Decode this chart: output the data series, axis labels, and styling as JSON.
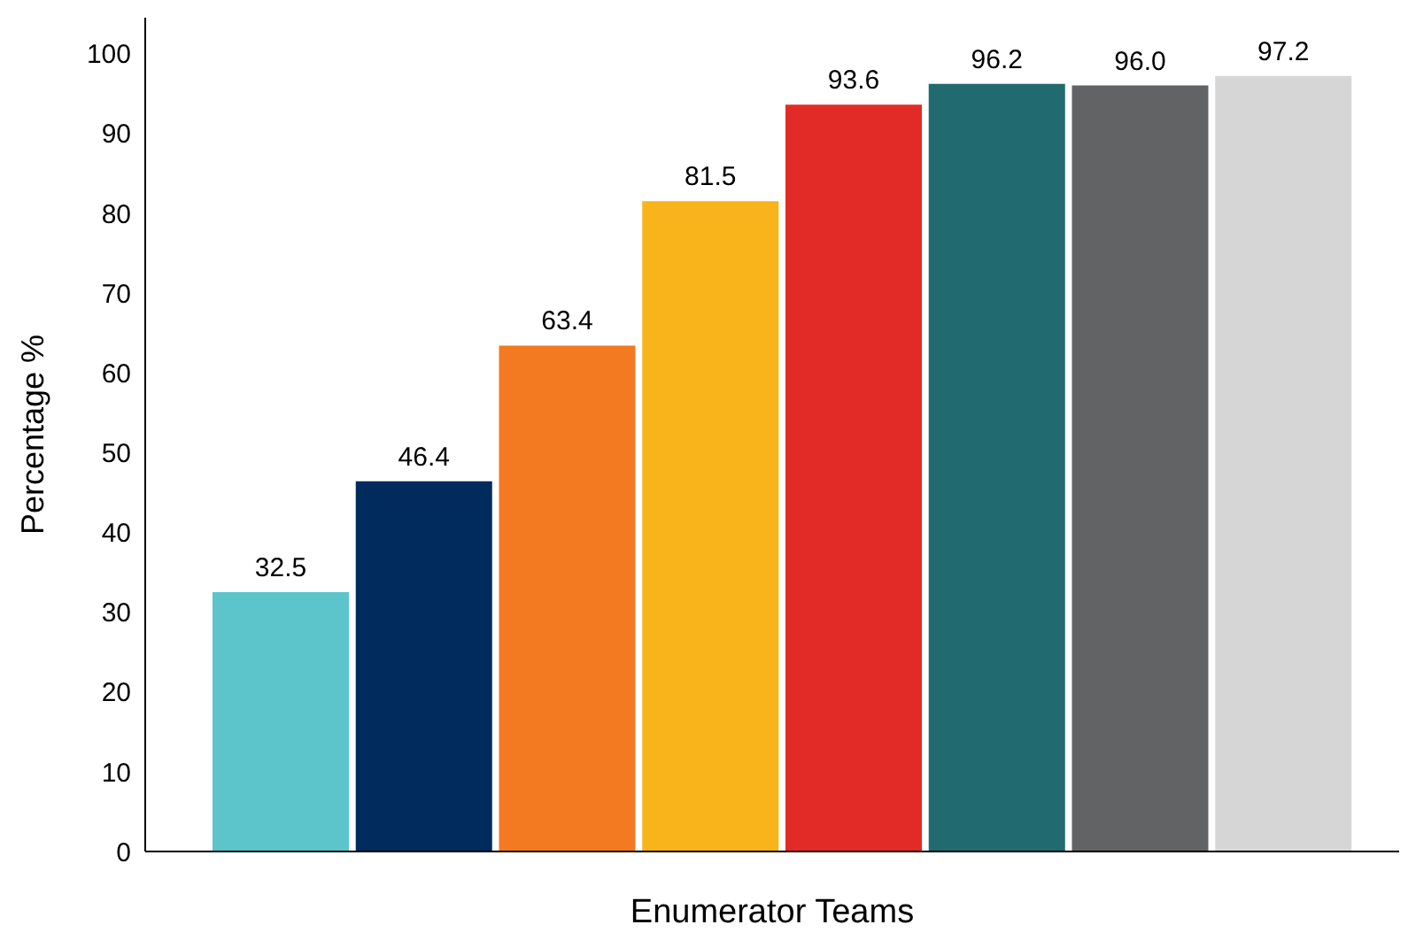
{
  "chart_data": {
    "type": "bar",
    "xlabel": "Enumerator Teams",
    "ylabel": "Percentage %",
    "categories": [
      null,
      null,
      null,
      null,
      null,
      null,
      null,
      null
    ],
    "values": [
      32.5,
      46.4,
      63.4,
      81.5,
      93.6,
      96.2,
      96.0,
      97.2
    ],
    "colors": [
      "#5bc5cb",
      "#002b5c",
      "#f37a20",
      "#f9b31b",
      "#e22b27",
      "#216a70",
      "#626365",
      "#d6d6d6"
    ],
    "value_labels": [
      "32.5",
      "46.4",
      "63.4",
      "81.5",
      "93.6",
      "96.2",
      "96.0",
      "97.2"
    ],
    "ylim": [
      0,
      104.5
    ],
    "yticks": [
      0,
      10,
      20,
      30,
      40,
      50,
      60,
      70,
      80,
      90,
      100
    ],
    "grid": false,
    "legend": false
  }
}
